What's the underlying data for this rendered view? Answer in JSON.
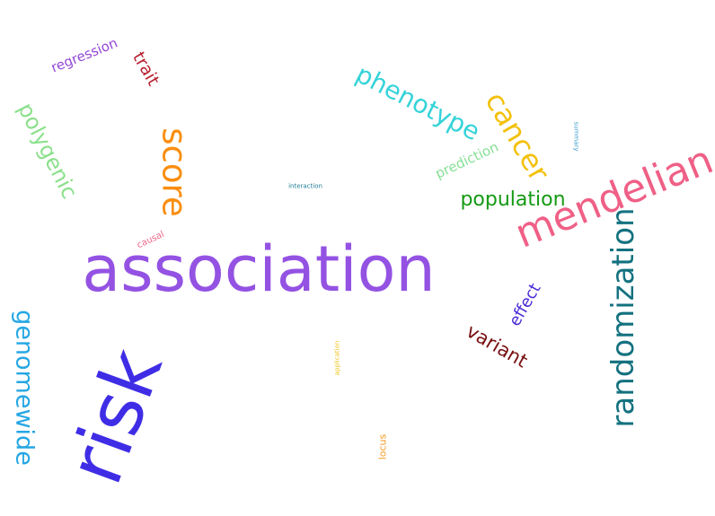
{
  "words": [
    {
      "key": "association",
      "text": "association",
      "color": "#9452e3"
    },
    {
      "key": "risk",
      "text": "risk",
      "color": "#3f2de6"
    },
    {
      "key": "mendelian",
      "text": "mendelian",
      "color": "#ef5f86"
    },
    {
      "key": "randomization",
      "text": "randomization",
      "color": "#13717f"
    },
    {
      "key": "genomewide",
      "text": "genomewide",
      "color": "#26a7e3"
    },
    {
      "key": "score",
      "text": "score",
      "color": "#f98e10"
    },
    {
      "key": "cancer",
      "text": "cancer",
      "color": "#f3c10d"
    },
    {
      "key": "phenotype",
      "text": "phenotype",
      "color": "#35d3d9"
    },
    {
      "key": "polygenic",
      "text": "polygenic",
      "color": "#8be08b"
    },
    {
      "key": "population",
      "text": "population",
      "color": "#149a13"
    },
    {
      "key": "variant",
      "text": "variant",
      "color": "#780f10"
    },
    {
      "key": "effect",
      "text": "effect",
      "color": "#4b2bd6"
    },
    {
      "key": "trait",
      "text": "trait",
      "color": "#b81f2f"
    },
    {
      "key": "regression",
      "text": "regression",
      "color": "#9447d6"
    },
    {
      "key": "prediction",
      "text": "prediction",
      "color": "#87df95"
    },
    {
      "key": "causal",
      "text": "causal",
      "color": "#ee6587"
    },
    {
      "key": "interaction",
      "text": "interaction",
      "color": "#1c7d94"
    },
    {
      "key": "summary",
      "text": "summary",
      "color": "#3e9fcf"
    },
    {
      "key": "application",
      "text": "application",
      "color": "#f0c418"
    },
    {
      "key": "locus",
      "text": "locus",
      "color": "#f59a21"
    }
  ]
}
